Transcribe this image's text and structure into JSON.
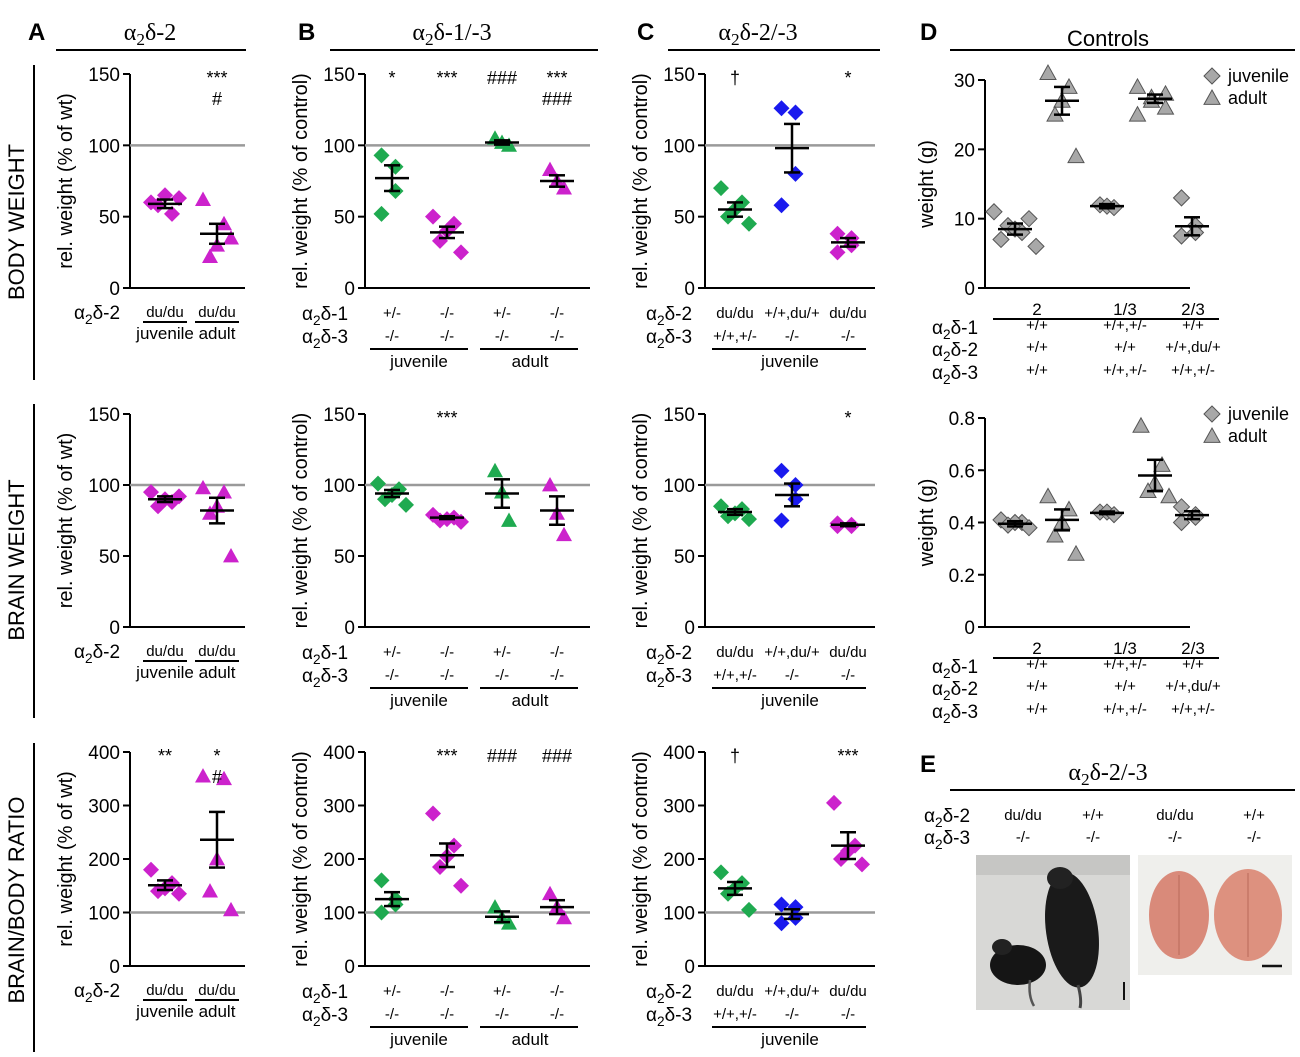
{
  "colors": {
    "green": "#1faa50",
    "magenta": "#cc22cc",
    "blue": "#1a1aee",
    "gray": "#a8a8a8",
    "ref_line": "#9a9a9a"
  },
  "panels": [
    {
      "letter": "A",
      "title": "α2δ-2"
    },
    {
      "letter": "B",
      "title": "α2δ-1/-3"
    },
    {
      "letter": "C",
      "title": "α2δ-2/-3"
    },
    {
      "letter": "D",
      "title": "Controls"
    },
    {
      "letter": "E",
      "title": "α2δ-2/-3"
    }
  ],
  "row_labels": [
    "BODY WEIGHT",
    "BRAIN WEIGHT",
    "BRAIN/BODY RATIO"
  ],
  "chart_data": [
    {
      "id": "A1",
      "type": "scatter",
      "ylabel": "rel. weight (% of wt)",
      "ylim": [
        0,
        150
      ],
      "yticks": [
        0,
        50,
        100,
        150
      ],
      "ref_line": 100,
      "groups": [
        {
          "label": "du/du",
          "group": "juvenile",
          "marker": "diamond",
          "color": "magenta",
          "points": [
            60,
            52,
            65,
            58,
            63
          ],
          "mean": 59,
          "sem": 3,
          "sig": []
        },
        {
          "label": "du/du",
          "group": "adult",
          "marker": "triangle",
          "color": "magenta",
          "points": [
            62,
            45,
            30,
            22,
            35
          ],
          "mean": 38,
          "sem": 7,
          "sig": [
            "***",
            "#"
          ]
        }
      ]
    },
    {
      "id": "A2",
      "type": "scatter",
      "ylabel": "rel. weight (% of wt)",
      "ylim": [
        0,
        150
      ],
      "yticks": [
        0,
        50,
        100,
        150
      ],
      "ref_line": 100,
      "groups": [
        {
          "label": "du/du",
          "group": "juvenile",
          "marker": "diamond",
          "color": "magenta",
          "points": [
            95,
            88,
            90,
            85,
            92
          ],
          "mean": 90,
          "sem": 2,
          "sig": []
        },
        {
          "label": "du/du",
          "group": "adult",
          "marker": "triangle",
          "color": "magenta",
          "points": [
            98,
            95,
            85,
            80,
            50
          ],
          "mean": 82,
          "sem": 9,
          "sig": []
        }
      ]
    },
    {
      "id": "A3",
      "type": "scatter",
      "ylabel": "rel. weight (% of wt)",
      "ylim": [
        0,
        400
      ],
      "yticks": [
        0,
        100,
        200,
        300,
        400
      ],
      "ref_line": 100,
      "groups": [
        {
          "label": "du/du",
          "group": "juvenile",
          "marker": "diamond",
          "color": "magenta",
          "points": [
            180,
            155,
            145,
            140,
            135
          ],
          "mean": 151,
          "sem": 9,
          "sig": [
            "**"
          ]
        },
        {
          "label": "du/du",
          "group": "adult",
          "marker": "triangle",
          "color": "magenta",
          "points": [
            355,
            350,
            200,
            140,
            105
          ],
          "mean": 236,
          "sem": 52,
          "sig": [
            "*",
            "#"
          ]
        }
      ]
    },
    {
      "id": "B1",
      "type": "scatter",
      "ylabel": "rel. weight (% of control)",
      "ylim": [
        0,
        150
      ],
      "yticks": [
        0,
        50,
        100,
        150
      ],
      "ref_line": 100,
      "groups": [
        {
          "label": "+/-",
          "marker": "diamond",
          "color": "green",
          "points": [
            93,
            85,
            68,
            52
          ],
          "mean": 77,
          "sem": 9,
          "sig": [
            "*"
          ]
        },
        {
          "label": "-/-",
          "marker": "diamond",
          "color": "magenta",
          "points": [
            50,
            45,
            40,
            33,
            25
          ],
          "mean": 39,
          "sem": 4,
          "sig": [
            "***"
          ]
        },
        {
          "label": "+/-",
          "marker": "triangle",
          "color": "green",
          "points": [
            105,
            102,
            100
          ],
          "mean": 102,
          "sem": 1.5,
          "sig": [
            "###"
          ]
        },
        {
          "label": "-/-",
          "marker": "triangle",
          "color": "magenta",
          "points": [
            83,
            75,
            70
          ],
          "mean": 75,
          "sem": 4,
          "sig": [
            "***",
            "###"
          ]
        }
      ]
    },
    {
      "id": "B2",
      "type": "scatter",
      "ylabel": "rel. weight (% of control)",
      "ylim": [
        0,
        150
      ],
      "yticks": [
        0,
        50,
        100,
        150
      ],
      "ref_line": 100,
      "groups": [
        {
          "label": "+/-",
          "marker": "diamond",
          "color": "green",
          "points": [
            101,
            97,
            93,
            90,
            86
          ],
          "mean": 94,
          "sem": 2.5,
          "sig": []
        },
        {
          "label": "-/-",
          "marker": "diamond",
          "color": "magenta",
          "points": [
            79,
            77,
            76,
            75,
            74
          ],
          "mean": 77,
          "sem": 1,
          "sig": [
            "***"
          ]
        },
        {
          "label": "+/-",
          "marker": "triangle",
          "color": "green",
          "points": [
            110,
            95,
            75
          ],
          "mean": 94,
          "sem": 10,
          "sig": []
        },
        {
          "label": "-/-",
          "marker": "triangle",
          "color": "magenta",
          "points": [
            100,
            80,
            65
          ],
          "mean": 82,
          "sem": 10,
          "sig": []
        }
      ]
    },
    {
      "id": "B3",
      "type": "scatter",
      "ylabel": "rel. weight (% of control)",
      "ylim": [
        0,
        400
      ],
      "yticks": [
        0,
        100,
        200,
        300,
        400
      ],
      "ref_line": 100,
      "groups": [
        {
          "label": "+/-",
          "marker": "diamond",
          "color": "green",
          "points": [
            160,
            125,
            115,
            100
          ],
          "mean": 125,
          "sem": 13,
          "sig": []
        },
        {
          "label": "-/-",
          "marker": "diamond",
          "color": "magenta",
          "points": [
            285,
            225,
            205,
            185,
            150
          ],
          "mean": 207,
          "sem": 22,
          "sig": [
            "***"
          ]
        },
        {
          "label": "+/-",
          "marker": "triangle",
          "color": "green",
          "points": [
            110,
            90,
            80
          ],
          "mean": 92,
          "sem": 10,
          "sig": [
            "###"
          ]
        },
        {
          "label": "-/-",
          "marker": "triangle",
          "color": "magenta",
          "points": [
            135,
            110,
            90
          ],
          "mean": 110,
          "sem": 13,
          "sig": [
            "###"
          ]
        }
      ]
    },
    {
      "id": "C1",
      "type": "scatter",
      "ylabel": "rel. weight (% of control)",
      "ylim": [
        0,
        150
      ],
      "yticks": [
        0,
        50,
        100,
        150
      ],
      "ref_line": 100,
      "groups": [
        {
          "label": "du/du",
          "label2": "+/+,+/-",
          "marker": "diamond",
          "color": "green",
          "points": [
            70,
            60,
            55,
            50,
            45
          ],
          "mean": 55,
          "sem": 5,
          "sig": [
            "†"
          ]
        },
        {
          "label": "+/+,du/+",
          "label2": "-/-",
          "marker": "diamond",
          "color": "blue",
          "points": [
            126,
            123,
            80,
            58
          ],
          "mean": 98,
          "sem": 17,
          "sig": []
        },
        {
          "label": "du/du",
          "label2": "-/-",
          "marker": "diamond",
          "color": "magenta",
          "points": [
            38,
            35,
            30,
            25
          ],
          "mean": 32,
          "sem": 3,
          "sig": [
            "*"
          ]
        }
      ]
    },
    {
      "id": "C2",
      "type": "scatter",
      "ylabel": "rel. weight (% of control)",
      "ylim": [
        0,
        150
      ],
      "yticks": [
        0,
        50,
        100,
        150
      ],
      "ref_line": 100,
      "groups": [
        {
          "label": "du/du",
          "label2": "+/+,+/-",
          "marker": "diamond",
          "color": "green",
          "points": [
            85,
            83,
            80,
            78,
            76
          ],
          "mean": 81,
          "sem": 2,
          "sig": []
        },
        {
          "label": "+/+,du/+",
          "label2": "-/-",
          "marker": "diamond",
          "color": "blue",
          "points": [
            110,
            100,
            90,
            75
          ],
          "mean": 93,
          "sem": 8,
          "sig": []
        },
        {
          "label": "du/du",
          "label2": "-/-",
          "marker": "diamond",
          "color": "magenta",
          "points": [
            73,
            72,
            71,
            71
          ],
          "mean": 72,
          "sem": 1,
          "sig": [
            "*"
          ]
        }
      ]
    },
    {
      "id": "C3",
      "type": "scatter",
      "ylabel": "rel. weight (% of control)",
      "ylim": [
        0,
        400
      ],
      "yticks": [
        0,
        100,
        200,
        300,
        400
      ],
      "ref_line": 100,
      "groups": [
        {
          "label": "du/du",
          "label2": "+/+,+/-",
          "marker": "diamond",
          "color": "green",
          "points": [
            175,
            155,
            145,
            135,
            105
          ],
          "mean": 145,
          "sem": 12,
          "sig": [
            "†"
          ]
        },
        {
          "label": "+/+,du/+",
          "label2": "-/-",
          "marker": "diamond",
          "color": "blue",
          "points": [
            115,
            110,
            90,
            80
          ],
          "mean": 97,
          "sem": 9,
          "sig": []
        },
        {
          "label": "du/du",
          "label2": "-/-",
          "marker": "diamond",
          "color": "magenta",
          "points": [
            305,
            225,
            215,
            200,
            190
          ],
          "mean": 225,
          "sem": 25,
          "sig": [
            "***"
          ]
        }
      ]
    },
    {
      "id": "D1",
      "type": "scatter",
      "ylabel": "weight (g)",
      "ylim": [
        0,
        30
      ],
      "yticks": [
        0,
        10,
        20,
        30
      ],
      "legend": [
        "juvenile",
        "adult"
      ],
      "legend_position": "top-right",
      "groups": [
        {
          "marker": "diamond",
          "color": "gray",
          "points": [
            11,
            10,
            9,
            8.5,
            8,
            7,
            6
          ],
          "mean": 8.5,
          "sem": 0.8
        },
        {
          "marker": "triangle",
          "color": "gray",
          "points": [
            31,
            29,
            27,
            25,
            19
          ],
          "mean": 27,
          "sem": 2
        },
        {
          "marker": "diamond",
          "color": "gray",
          "points": [
            12,
            11.8,
            11.6
          ],
          "mean": 11.8,
          "sem": 0.3
        },
        {
          "marker": "triangle",
          "color": "gray",
          "points": [
            29,
            28,
            27.5,
            27,
            26,
            25
          ],
          "mean": 27.3,
          "sem": 0.6
        },
        {
          "marker": "diamond",
          "color": "gray",
          "points": [
            13,
            9,
            8,
            7.5
          ],
          "mean": 8.9,
          "sem": 1.3
        }
      ],
      "xlabels": [
        {
          "title": "2",
          "a1": "+/+",
          "a2": "+/+",
          "a3": "+/+"
        },
        {
          "title": "1/3",
          "a1": "+/+,+/-",
          "a2": "+/+",
          "a3": "+/+,+/-"
        },
        {
          "title": "2/3",
          "a1": "+/+",
          "a2": "+/+,du/+",
          "a3": "+/+,+/-"
        }
      ]
    },
    {
      "id": "D2",
      "type": "scatter",
      "ylabel": "weight (g)",
      "ylim": [
        0,
        0.8
      ],
      "yticks": [
        "0",
        "0.2",
        "0.4",
        "0.6",
        "0.8"
      ],
      "legend": [
        "juvenile",
        "adult"
      ],
      "legend_position": "top-right",
      "groups": [
        {
          "marker": "diamond",
          "color": "gray",
          "points": [
            0.41,
            0.4,
            0.4,
            0.39,
            0.38
          ],
          "mean": 0.395,
          "sem": 0.01
        },
        {
          "marker": "triangle",
          "color": "gray",
          "points": [
            0.5,
            0.45,
            0.4,
            0.35,
            0.28
          ],
          "mean": 0.41,
          "sem": 0.04
        },
        {
          "marker": "diamond",
          "color": "gray",
          "points": [
            0.44,
            0.44,
            0.43
          ],
          "mean": 0.437,
          "sem": 0.005
        },
        {
          "marker": "triangle",
          "color": "gray",
          "points": [
            0.77,
            0.62,
            0.55,
            0.52,
            0.5
          ],
          "mean": 0.58,
          "sem": 0.06
        },
        {
          "marker": "diamond",
          "color": "gray",
          "points": [
            0.46,
            0.43,
            0.42,
            0.4
          ],
          "mean": 0.428,
          "sem": 0.015
        }
      ],
      "xlabels": [
        {
          "title": "2",
          "a1": "+/+",
          "a2": "+/+",
          "a3": "+/+"
        },
        {
          "title": "1/3",
          "a1": "+/+,+/-",
          "a2": "+/+",
          "a3": "+/+,+/-"
        },
        {
          "title": "2/3",
          "a1": "+/+",
          "a2": "+/+,du/+",
          "a3": "+/+,+/-"
        }
      ]
    }
  ],
  "genotype_labels": {
    "a2d1": "α2δ-1",
    "a2d2": "α2δ-2",
    "a2d3": "α2δ-3",
    "juvenile": "juvenile",
    "adult": "adult"
  },
  "photo_panel": {
    "columns": [
      {
        "a2d2": "du/du",
        "a2d3": "-/-"
      },
      {
        "a2d2": "+/+",
        "a2d3": "-/-"
      },
      {
        "a2d2": "du/du",
        "a2d3": "-/-"
      },
      {
        "a2d2": "+/+",
        "a2d3": "-/-"
      }
    ],
    "photo_left": "mice photograph",
    "photo_right": "brains photograph"
  }
}
